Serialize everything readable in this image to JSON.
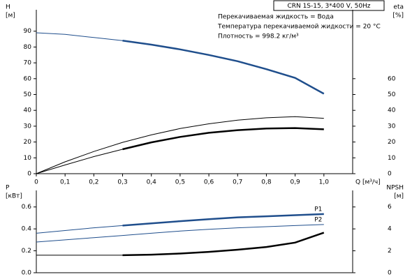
{
  "chart_data": [
    {
      "type": "line",
      "title": "CRN 1S-15, 3*400 V, 50Hz",
      "annotations": [
        "Перекачиваемая жидкость = Вода",
        "Температура перекачиваемой жидкости = 20 °C",
        "Плотность = 998.2 кг/м³"
      ],
      "ylabel": "H",
      "ylabel_unit": "[м]",
      "y2label": "eta",
      "y2label_unit": "[%]",
      "xlabel": "Q [м³/ч]",
      "x": [
        0,
        0.1,
        0.2,
        0.3,
        0.4,
        0.5,
        0.6,
        0.7,
        0.8,
        0.9,
        1.0
      ],
      "xlim": [
        0,
        1.1
      ],
      "xticks": [
        0,
        {
          "value": 0.1,
          "label": "0,1"
        },
        {
          "value": 0.2,
          "label": "0,2"
        },
        {
          "value": 0.3,
          "label": "0,3"
        },
        {
          "value": 0.4,
          "label": "0,4"
        },
        {
          "value": 0.5,
          "label": "0,5"
        },
        {
          "value": 0.6,
          "label": "0,6"
        },
        {
          "value": 0.7,
          "label": "0,7"
        },
        {
          "value": 0.8,
          "label": "0,8"
        },
        {
          "value": 0.9,
          "label": "0,9"
        },
        {
          "value": 1.0,
          "label": "1,0"
        }
      ],
      "ylim": [
        0,
        100
      ],
      "yticks": [
        0,
        10,
        20,
        30,
        40,
        50,
        60,
        70,
        80,
        90
      ],
      "y2lim": [
        0,
        100
      ],
      "y2ticks": [
        0,
        10,
        20,
        30,
        40,
        50,
        60
      ],
      "duty_range": [
        0.3,
        1.0
      ],
      "series": [
        {
          "color": "#1f4e8c",
          "duty": true,
          "values": [
            89,
            88,
            86,
            84,
            81.5,
            78.5,
            75,
            71,
            66,
            60.5,
            50.5
          ]
        },
        {
          "color": "#000000",
          "axis": "y2",
          "duty": false,
          "values": [
            0,
            7.5,
            14,
            19.8,
            24.5,
            28.5,
            31.5,
            33.8,
            35.3,
            36,
            35
          ]
        },
        {
          "color": "#000000",
          "axis": "y2",
          "duty": true,
          "values": [
            0,
            5.5,
            10.8,
            15.4,
            19.8,
            23.2,
            25.8,
            27.5,
            28.5,
            28.8,
            28
          ]
        }
      ]
    },
    {
      "type": "line",
      "ylabel": "P",
      "ylabel_unit": "[кВт]",
      "y2label": "NPSH",
      "y2label_unit": "[м]",
      "x": [
        0,
        0.1,
        0.2,
        0.3,
        0.4,
        0.5,
        0.6,
        0.7,
        0.8,
        0.9,
        1.0
      ],
      "xlim": [
        0,
        1.1
      ],
      "ylim": [
        0,
        0.7
      ],
      "yticks": [
        {
          "value": 0,
          "label": "0.0"
        },
        0.2,
        0.4,
        0.6
      ],
      "y2lim": [
        0,
        7
      ],
      "y2ticks": [
        0,
        2,
        4,
        6
      ],
      "duty_range": [
        0.3,
        1.0
      ],
      "series": [
        {
          "name": "P1",
          "color": "#1f4e8c",
          "duty": true,
          "values": [
            0.36,
            0.385,
            0.41,
            0.43,
            0.45,
            0.47,
            0.488,
            0.505,
            0.515,
            0.525,
            0.535
          ]
        },
        {
          "name": "P2",
          "color": "#1f4e8c",
          "duty": false,
          "values": [
            0.28,
            0.3,
            0.32,
            0.34,
            0.36,
            0.38,
            0.396,
            0.41,
            0.42,
            0.43,
            0.44
          ]
        },
        {
          "color": "#000000",
          "axis": "y2",
          "duty": true,
          "values": [
            1.6,
            1.6,
            1.6,
            1.6,
            1.65,
            1.75,
            1.9,
            2.1,
            2.35,
            2.75,
            3.65
          ]
        }
      ]
    }
  ]
}
